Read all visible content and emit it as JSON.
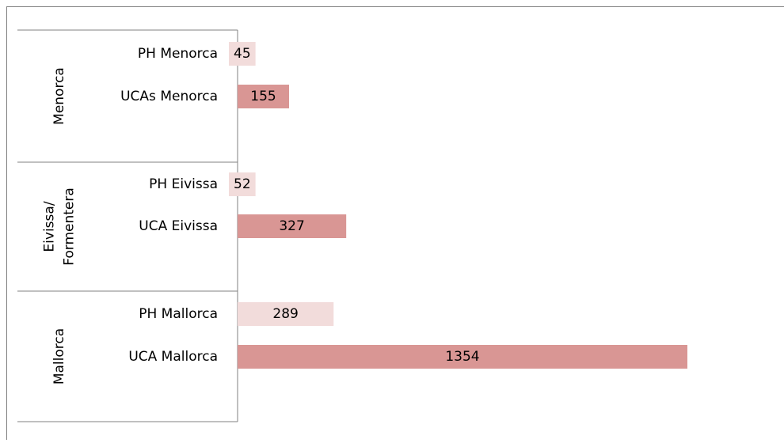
{
  "chart_data": {
    "type": "bar",
    "orientation": "horizontal",
    "groups": [
      {
        "label": [
          "Menorca"
        ],
        "categories": [
          "PH Menorca",
          "UCAs Menorca"
        ],
        "values": [
          45,
          155
        ],
        "colors": [
          "#f2dcdb",
          "#d99694"
        ]
      },
      {
        "label": [
          "Eivissa/",
          "Formentera"
        ],
        "categories": [
          "PH Eivissa",
          "UCA Eivissa"
        ],
        "values": [
          52,
          327
        ],
        "colors": [
          "#f2dcdb",
          "#d99694"
        ]
      },
      {
        "label": [
          "Mallorca"
        ],
        "categories": [
          "PH Mallorca",
          "UCA Mallorca"
        ],
        "values": [
          289,
          1354
        ],
        "colors": [
          "#f2dcdb",
          "#d99694"
        ]
      }
    ]
  }
}
